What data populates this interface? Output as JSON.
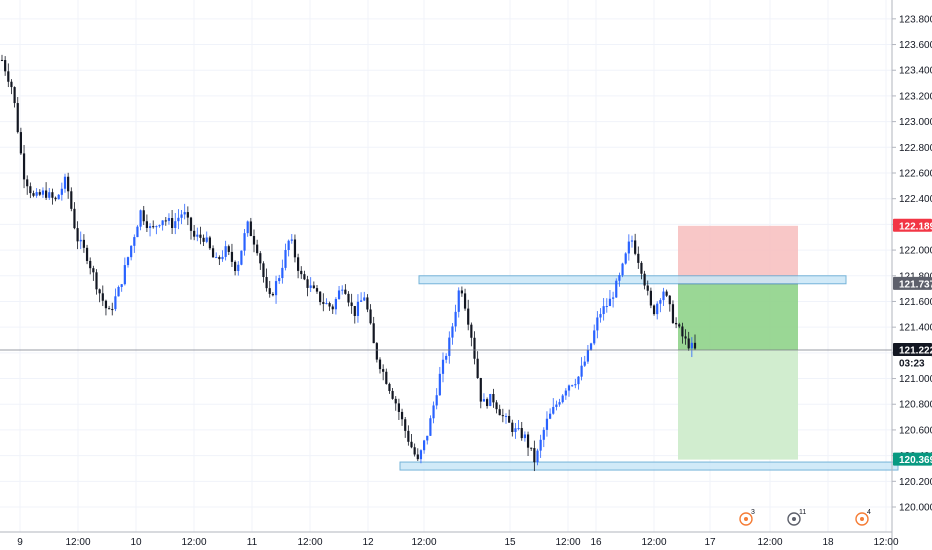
{
  "chart_data": {
    "type": "candlestick",
    "title": "",
    "xlabel": "",
    "ylabel": "",
    "ylim": [
      119.93,
      123.9
    ],
    "y_ticks": [
      120.0,
      120.2,
      120.4,
      120.6,
      120.8,
      121.0,
      121.2,
      121.4,
      121.6,
      121.8,
      122.0,
      122.2,
      122.4,
      122.6,
      122.8,
      123.0,
      123.2,
      123.4,
      123.6,
      123.8
    ],
    "x_ticks": [
      "9",
      "12:00",
      "10",
      "12:00",
      "11",
      "12:00",
      "12",
      "12:00",
      "15",
      "12:00",
      "16",
      "12:00",
      "17",
      "12:00",
      "18",
      "12:00"
    ],
    "colors": {
      "up": "#2962ff",
      "down": "#131722",
      "grid": "#f0f3fa",
      "zone_fill": "#c9e7f7",
      "zone_stroke": "#5fa8d3",
      "stop": "#f7bdbd",
      "profit_dark": "#8fd38a",
      "profit_light": "#cfeccc",
      "price_line": "#787b86"
    },
    "price_path": [
      [
        "9",
        123.48
      ],
      [
        "",
        123.25
      ],
      [
        "",
        122.6
      ],
      [
        "",
        122.4
      ],
      [
        "",
        122.45
      ],
      [
        "",
        122.38
      ],
      [
        "",
        122.55
      ],
      [
        "",
        122.1
      ],
      [
        "",
        121.95
      ],
      [
        "12:00",
        121.7
      ],
      [
        "",
        121.5
      ],
      [
        "",
        121.7
      ],
      [
        "",
        122.0
      ],
      [
        "",
        122.3
      ],
      [
        "",
        122.15
      ],
      [
        "",
        122.25
      ],
      [
        "10",
        122.2
      ],
      [
        "",
        122.3
      ],
      [
        "",
        122.1
      ],
      [
        "",
        122.1
      ],
      [
        "",
        121.9
      ],
      [
        "12:00",
        122.0
      ],
      [
        "",
        121.85
      ],
      [
        "",
        122.2
      ],
      [
        "",
        122.0
      ],
      [
        "",
        121.6
      ],
      [
        "11",
        121.8
      ],
      [
        "",
        122.1
      ],
      [
        "",
        121.8
      ],
      [
        "",
        121.7
      ],
      [
        "",
        121.6
      ],
      [
        "12:00",
        121.55
      ],
      [
        "",
        121.75
      ],
      [
        "",
        121.5
      ],
      [
        "",
        121.65
      ],
      [
        "",
        121.2
      ],
      [
        "12",
        121.0
      ],
      [
        "",
        120.8
      ],
      [
        "",
        120.55
      ],
      [
        "",
        120.35
      ],
      [
        "",
        120.6
      ],
      [
        "12:00",
        121.0
      ],
      [
        "",
        121.3
      ],
      [
        "",
        121.75
      ],
      [
        "",
        121.35
      ],
      [
        "",
        120.8
      ],
      [
        "15",
        120.85
      ],
      [
        "",
        120.7
      ],
      [
        "",
        120.6
      ],
      [
        "",
        120.55
      ],
      [
        "",
        120.35
      ],
      [
        "",
        120.65
      ],
      [
        "",
        120.8
      ],
      [
        "",
        120.95
      ],
      [
        "",
        121.0
      ],
      [
        "16",
        121.2
      ],
      [
        "",
        121.5
      ],
      [
        "",
        121.6
      ],
      [
        "",
        121.8
      ],
      [
        "12:00",
        122.1
      ],
      [
        "",
        121.85
      ],
      [
        "",
        121.5
      ],
      [
        "",
        121.7
      ],
      [
        "",
        121.45
      ],
      [
        "",
        121.3
      ],
      [
        "",
        121.22
      ]
    ],
    "zones": [
      {
        "name": "resistance-zone",
        "y_top": 121.8,
        "y_bottom": 121.74,
        "x_start": "12:00 (15)",
        "x_end": "after 12:00 (17)"
      },
      {
        "name": "support-zone",
        "y_top": 120.35,
        "y_bottom": 120.29,
        "x_start": "before 12:00 (12)",
        "x_end": "right edge"
      }
    ],
    "short_position": {
      "stop": 122.189,
      "entry": 121.737,
      "target": 120.369
    },
    "price_labels": [
      {
        "name": "stop-label",
        "value": "122.189",
        "bg": "#f23645",
        "fg": "#ffffff"
      },
      {
        "name": "entry-label",
        "value": "121.737",
        "bg": "#5d606b",
        "fg": "#ffffff"
      },
      {
        "name": "current-price-label",
        "value": "121.222",
        "bg": "#131722",
        "fg": "#ffffff"
      },
      {
        "name": "countdown-label",
        "value": "03:23",
        "bg": "#ffffff",
        "fg": "#131722"
      },
      {
        "name": "target-label",
        "value": "120.369",
        "bg": "#089981",
        "fg": "#ffffff"
      }
    ],
    "current_price": 121.222,
    "events": [
      {
        "name": "event-marker-3",
        "count": "3",
        "color": "#f57c35"
      },
      {
        "name": "event-marker-11",
        "count": "11",
        "color": "#5d606b"
      },
      {
        "name": "event-marker-4",
        "count": "4",
        "color": "#f57c35"
      }
    ],
    "grid": true
  }
}
